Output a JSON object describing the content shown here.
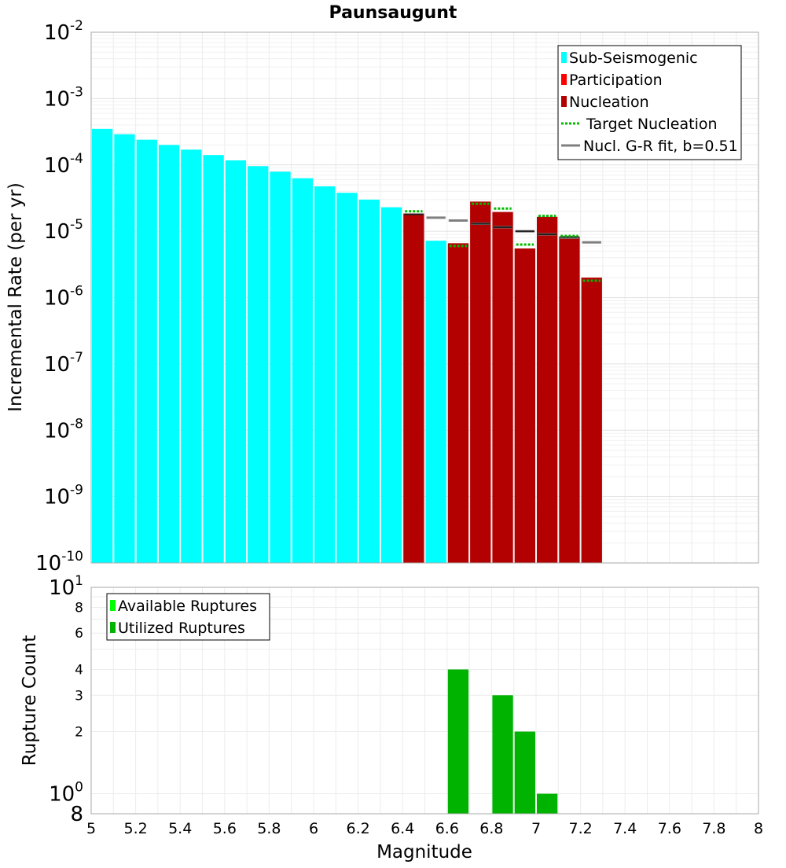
{
  "chart_data": [
    {
      "type": "bar",
      "title": "Paunsaugunt",
      "xlabel": "",
      "ylabel": "Incremental Rate (per yr)",
      "y_scale": "log",
      "xlim": [
        5,
        8
      ],
      "ylim": [
        1e-10,
        0.01
      ],
      "y_ticks": [
        {
          "base": "10",
          "exp": "-2"
        },
        {
          "base": "10",
          "exp": "-3"
        },
        {
          "base": "10",
          "exp": "-4"
        },
        {
          "base": "10",
          "exp": "-5"
        },
        {
          "base": "10",
          "exp": "-6"
        },
        {
          "base": "10",
          "exp": "-7"
        },
        {
          "base": "10",
          "exp": "-8"
        },
        {
          "base": "10",
          "exp": "-9"
        },
        {
          "base": "10",
          "exp": "-10"
        }
      ],
      "bar_width": 0.1,
      "grid": true,
      "legend_position": "top-right",
      "legend": [
        {
          "label": "Sub-Seismogenic",
          "color": "#00ffff",
          "kind": "swatch"
        },
        {
          "label": "Participation",
          "color": "#ff0000",
          "kind": "swatch"
        },
        {
          "label": "Nucleation",
          "color": "#b30000",
          "kind": "swatch"
        },
        {
          "label": "Target Nucleation",
          "color": "#00bb00",
          "kind": "dotted"
        },
        {
          "label": "Nucl. G-R fit, b=0.51",
          "color": "#808080",
          "kind": "line"
        }
      ],
      "series": [
        {
          "name": "Sub-Seismogenic",
          "color": "#00ffff",
          "x": [
            5.05,
            5.15,
            5.25,
            5.35,
            5.45,
            5.55,
            5.65,
            5.75,
            5.85,
            5.95,
            6.05,
            6.15,
            6.25,
            6.35,
            6.55
          ],
          "values": [
            0.00035,
            0.00029,
            0.00024,
            0.0002,
            0.00017,
            0.000141,
            0.000117,
            9.6e-05,
            7.9e-05,
            6.3e-05,
            4.75e-05,
            3.8e-05,
            3e-05,
            2.3e-05,
            7.2e-06
          ]
        },
        {
          "name": "Nucleation",
          "color": "#b30000",
          "x": [
            6.45,
            6.65,
            6.75,
            6.85,
            6.95,
            7.05,
            7.15,
            7.25
          ],
          "values": [
            1.85e-05,
            6.6e-06,
            2.8e-05,
            1.95e-05,
            5.5e-06,
            1.65e-05,
            8.3e-06,
            2e-06
          ]
        },
        {
          "name": "Target Nucleation",
          "color": "#00bb00",
          "x": [
            6.45,
            6.65,
            6.75,
            6.85,
            6.95,
            7.05,
            7.15,
            7.25
          ],
          "values": [
            2e-05,
            6e-06,
            2.6e-05,
            2.2e-05,
            6.3e-06,
            1.7e-05,
            8.5e-06,
            1.8e-06
          ]
        },
        {
          "name": "Nucl. G-R fit, b=0.51",
          "color": "#808080",
          "x": [
            6.55,
            6.65,
            6.75,
            6.85,
            6.95,
            7.05,
            7.15,
            7.25
          ],
          "values": [
            1.6e-05,
            1.45e-05,
            1.3e-05,
            1.15e-05,
            1e-05,
            9e-06,
            8e-06,
            6.8e-06
          ]
        },
        {
          "name": "Participation markers",
          "color": "#222222",
          "x": [
            6.45,
            6.75,
            6.85,
            6.95,
            7.05,
            7.15
          ],
          "values": [
            1.8e-05,
            1.3e-05,
            1.15e-05,
            1e-05,
            9e-06,
            8.2e-06
          ]
        }
      ]
    },
    {
      "type": "bar",
      "title": "",
      "xlabel": "Magnitude",
      "ylabel": "Rupture Count",
      "y_scale": "log",
      "xlim": [
        5,
        8
      ],
      "ylim": [
        0.8,
        10
      ],
      "x_ticks": [
        "5",
        "5.2",
        "5.4",
        "5.6",
        "5.8",
        "6",
        "6.2",
        "6.4",
        "6.6",
        "6.8",
        "7",
        "7.2",
        "7.4",
        "7.6",
        "7.8",
        "8"
      ],
      "y_ticks": [
        {
          "value": 10,
          "label": "10",
          "exp": "1"
        },
        {
          "value": 8,
          "label": "8",
          "exp": ""
        },
        {
          "value": 6,
          "label": "6",
          "exp": ""
        },
        {
          "value": 4,
          "label": "4",
          "exp": ""
        },
        {
          "value": 3,
          "label": "3",
          "exp": ""
        },
        {
          "value": 2,
          "label": "2",
          "exp": ""
        },
        {
          "value": 1,
          "label": "10",
          "exp": "0"
        },
        {
          "value": 0.8,
          "label": "8",
          "exp": ""
        }
      ],
      "bar_width": 0.1,
      "grid": true,
      "legend_position": "top-left",
      "legend": [
        {
          "label": "Available Ruptures",
          "color": "#00ff00"
        },
        {
          "label": "Utilized Ruptures",
          "color": "#00b300"
        }
      ],
      "series": [
        {
          "name": "Utilized Ruptures",
          "color": "#00b300",
          "x": [
            6.65,
            6.85,
            6.95,
            7.05
          ],
          "values": [
            4,
            3,
            2,
            1
          ]
        }
      ]
    }
  ]
}
